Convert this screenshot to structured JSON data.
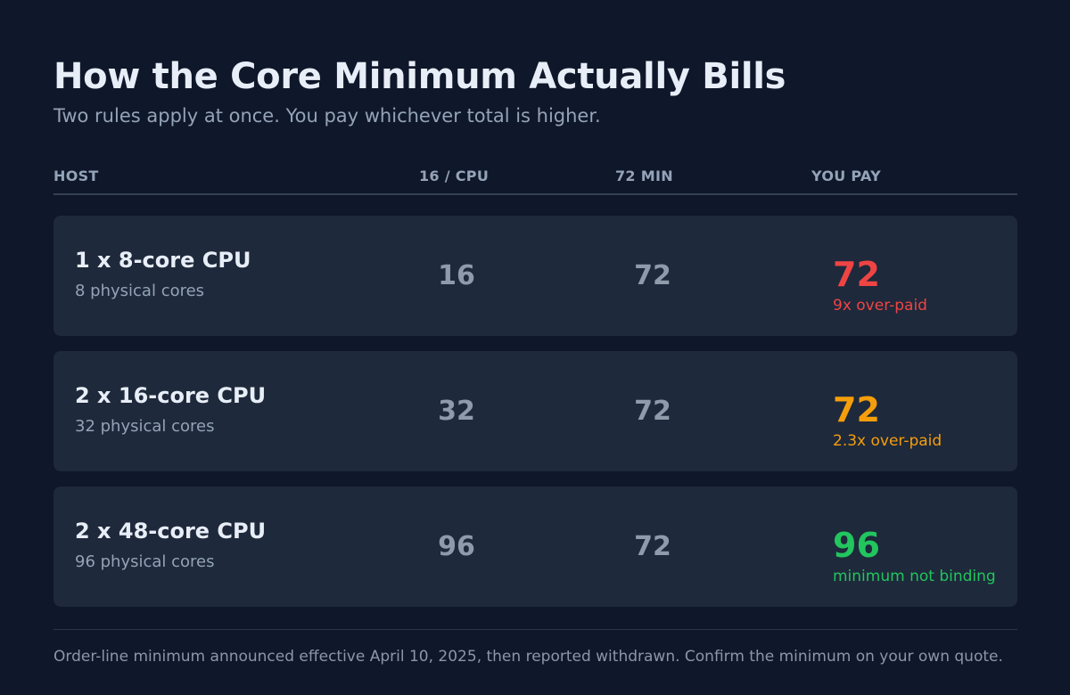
{
  "title": "How the Core Minimum Actually Bills",
  "subtitle": "Two rules apply at once. You pay whichever total is higher.",
  "columns": [
    "HOST",
    "16 / CPU",
    "72 MIN",
    "YOU PAY"
  ],
  "rows": [
    {
      "host": "1 x 8-core CPU",
      "cores": "8 physical cores",
      "per_cpu": "16",
      "min": "72",
      "pay": "72",
      "note": "9x over-paid",
      "status_color": "#ef4444"
    },
    {
      "host": "2 x 16-core CPU",
      "cores": "32 physical cores",
      "per_cpu": "32",
      "min": "72",
      "pay": "72",
      "note": "2.3x over-paid",
      "status_color": "#f59e0b"
    },
    {
      "host": "2 x 48-core CPU",
      "cores": "96 physical cores",
      "per_cpu": "96",
      "min": "72",
      "pay": "96",
      "note": "minimum not binding",
      "status_color": "#22c55e"
    }
  ],
  "footnote": "Order-line minimum announced effective April 10, 2025, then reported withdrawn. Confirm the minimum on your own quote."
}
